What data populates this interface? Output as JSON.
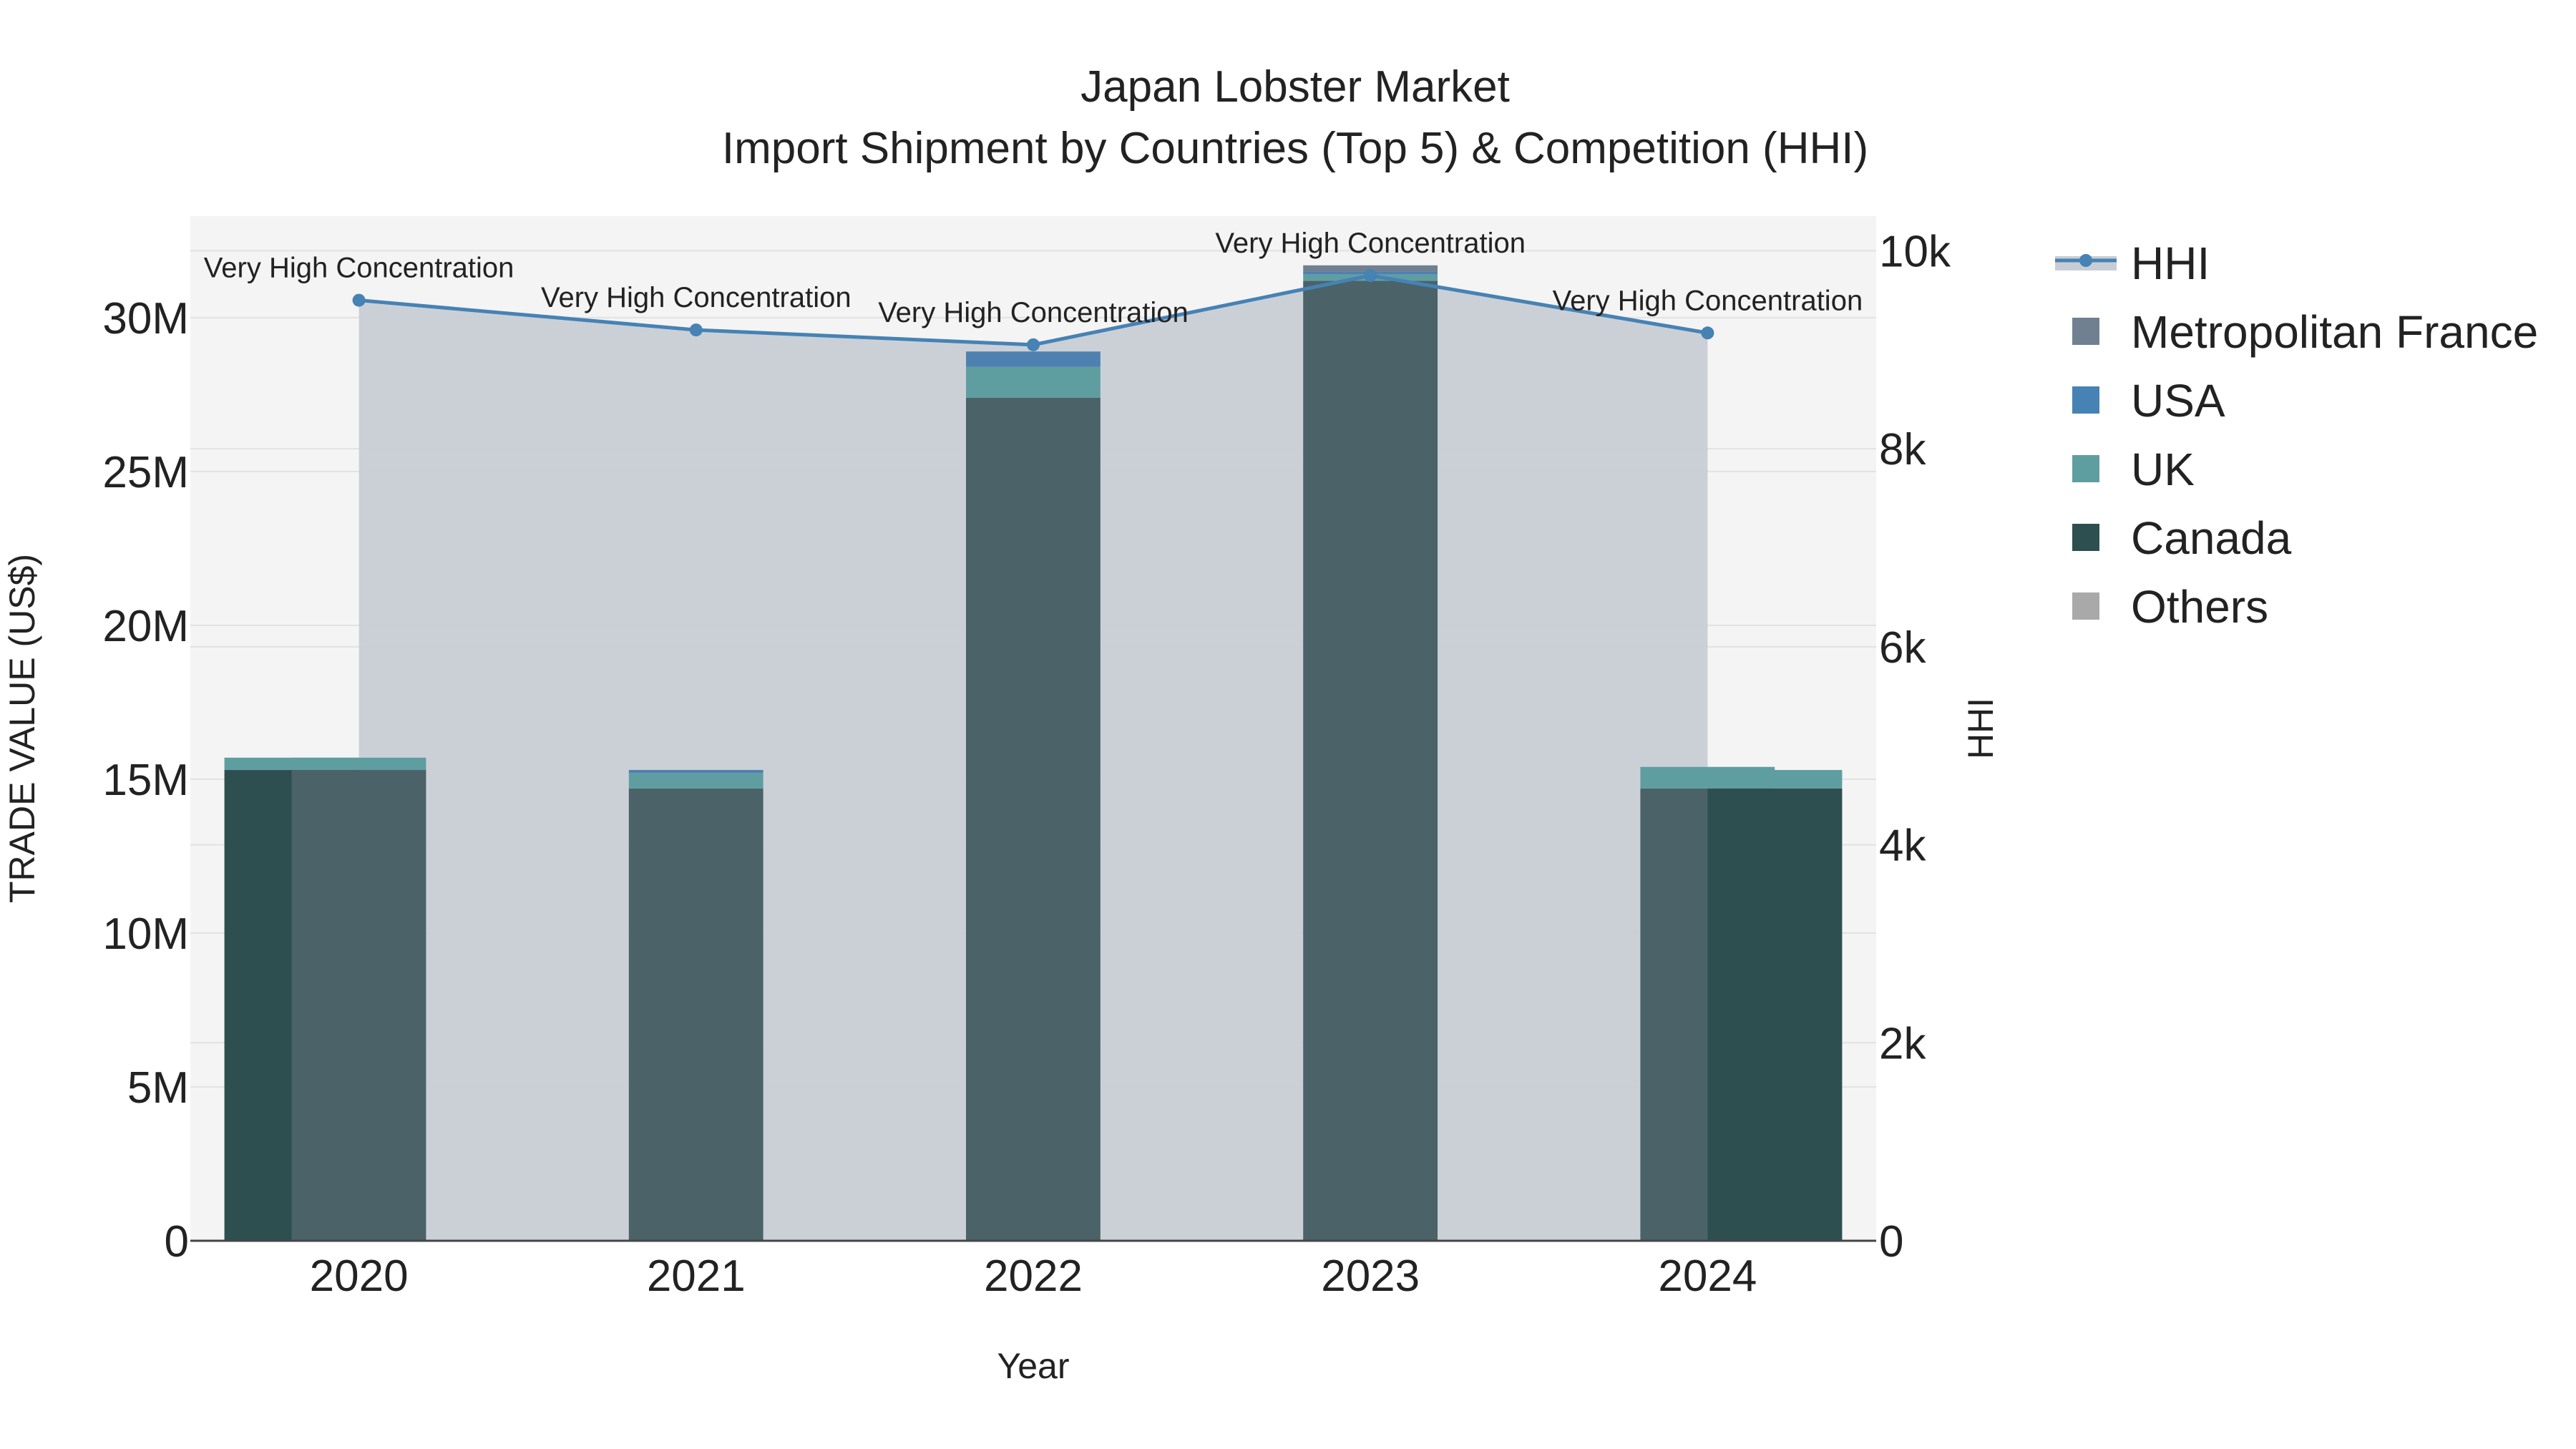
{
  "chart_data": {
    "type": "bar",
    "title": "Japan Lobster Market",
    "subtitle": "Import Shipment by Countries (Top 5) & Competition (HHI)",
    "xlabel": "Year",
    "ylabel": "TRADE VALUE (US$)",
    "y2label": "HHI",
    "categories": [
      "2020",
      "2021",
      "2022",
      "2023",
      "2024"
    ],
    "ylim": [
      0,
      33300000
    ],
    "y2lim": [
      0,
      10350
    ],
    "yticks": [
      0,
      5000000,
      10000000,
      15000000,
      20000000,
      25000000,
      30000000
    ],
    "ytick_labels": [
      "0",
      "5M",
      "10M",
      "15M",
      "20M",
      "25M",
      "30M"
    ],
    "y2ticks": [
      0,
      2000,
      4000,
      6000,
      8000,
      10000
    ],
    "y2tick_labels": [
      "0",
      "2k",
      "4k",
      "6k",
      "8k",
      "10k"
    ],
    "bar_groups": [
      {
        "side": "left",
        "series": [
          {
            "name": "Canada",
            "values": [
              15300000,
              0,
              0,
              0,
              0
            ],
            "color": "#2e4f4f"
          },
          {
            "name": "UK",
            "values": [
              400000,
              0,
              0,
              0,
              0
            ],
            "color": "#5f9ea0"
          }
        ]
      },
      {
        "side": "right",
        "series": [
          {
            "name": "Canada",
            "values": [
              15300000,
              14700000,
              27400000,
              31200000,
              14700000
            ],
            "color": "#4a6268"
          },
          {
            "name": "UK",
            "values": [
              400000,
              500000,
              1000000,
              200000,
              700000
            ],
            "color": "#5f9ea0"
          },
          {
            "name": "USA",
            "values": [
              0,
              100000,
              500000,
              100000,
              0
            ],
            "color": "#4e81b0"
          },
          {
            "name": "Metropolitan France",
            "values": [
              0,
              0,
              0,
              200000,
              0
            ],
            "color": "#708090"
          }
        ]
      },
      {
        "side": "right-of-center",
        "series": [
          {
            "name": "Canada",
            "values": [
              0,
              0,
              0,
              0,
              14700000
            ],
            "color": "#2e4f4f"
          },
          {
            "name": "UK",
            "values": [
              0,
              0,
              0,
              0,
              600000
            ],
            "color": "#5f9ea0"
          }
        ]
      }
    ],
    "hhi": {
      "name": "HHI",
      "values": [
        9500,
        9200,
        9050,
        9750,
        9170
      ],
      "labels": [
        "Very High Concentration",
        "Very High Concentration",
        "Very High Concentration",
        "Very High Concentration",
        "Very High Concentration"
      ],
      "color": "#4682b4",
      "fill": "#c8cdd5"
    },
    "legend": {
      "position": "top-right",
      "items": [
        {
          "name": "HHI",
          "kind": "line",
          "color": "#4682b4"
        },
        {
          "name": "Metropolitan France",
          "kind": "box",
          "color": "#708090"
        },
        {
          "name": "USA",
          "kind": "box",
          "color": "#4682b4"
        },
        {
          "name": "UK",
          "kind": "box",
          "color": "#5f9ea0"
        },
        {
          "name": "Canada",
          "kind": "box",
          "color": "#2e4f4f"
        },
        {
          "name": "Others",
          "kind": "box",
          "color": "#a9a9a9"
        }
      ]
    },
    "grid": true
  }
}
